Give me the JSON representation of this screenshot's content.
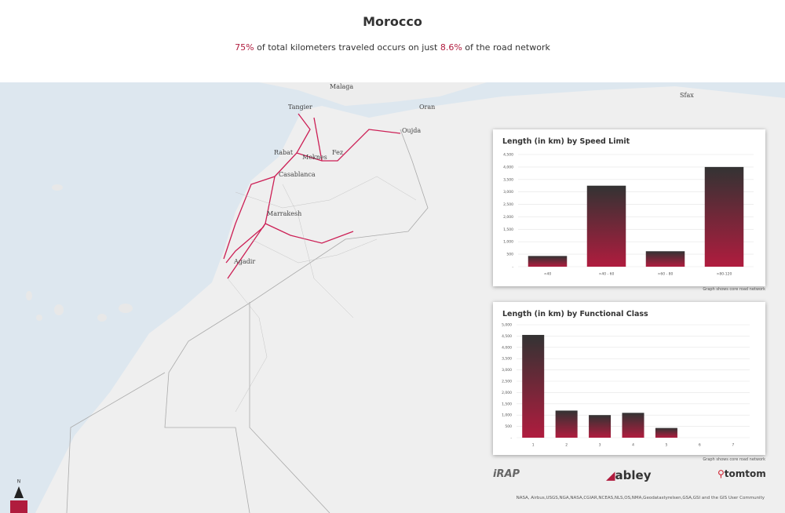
{
  "header": {
    "title": "Morocco",
    "subtitle": [
      "75%",
      " of total kilometers traveled occurs on just ",
      "8.6%",
      " of the road network"
    ]
  },
  "map": {
    "cities": [
      "Malaga",
      "Tangier",
      "Oran",
      "Oujda",
      "Sfax",
      "Rabat",
      "Meknes",
      "Fez",
      "Casablanca",
      "Marrakesh",
      "Agadir"
    ],
    "north": "N"
  },
  "charts": [
    {
      "type": "bar",
      "title": "Length (in km) by Speed Limit",
      "categories": [
        "<40",
        ">40 - 60",
        ">60 - 80",
        ">80-120"
      ],
      "values": [
        430,
        3250,
        620,
        4000
      ],
      "ylim": [
        0,
        4500
      ],
      "yticks": [
        {
          "value": 0,
          "label": "-"
        },
        500,
        {
          "value": 1000,
          "label": "1,000"
        },
        {
          "value": 1500,
          "label": "1,500"
        },
        {
          "value": 2000,
          "label": "2,000"
        },
        {
          "value": 2500,
          "label": "2,500"
        },
        {
          "value": 3000,
          "label": "3,000"
        },
        {
          "value": 3500,
          "label": "3,500"
        },
        {
          "value": 4000,
          "label": "4,000"
        },
        {
          "value": 4500,
          "label": "4,500"
        }
      ],
      "grid": true,
      "color": "#b01c3e",
      "note": "Graph shows core road network"
    },
    {
      "type": "bar",
      "title": "Length (in km) by Functional Class",
      "categories": [
        "1",
        "2",
        "3",
        "4",
        "5",
        "6",
        "7"
      ],
      "values": [
        4550,
        1200,
        1000,
        1100,
        430,
        0,
        0
      ],
      "ylim": [
        0,
        5000
      ],
      "yticks": [
        {
          "value": 0,
          "label": "-"
        },
        500,
        {
          "value": 1000,
          "label": "1,000"
        },
        {
          "value": 1500,
          "label": "1,500"
        },
        {
          "value": 2000,
          "label": "2,000"
        },
        {
          "value": 2500,
          "label": "2,500"
        },
        {
          "value": 3000,
          "label": "3,000"
        },
        {
          "value": 3500,
          "label": "3,500"
        },
        {
          "value": 4000,
          "label": "4,000"
        },
        {
          "value": 4500,
          "label": "4,500"
        },
        {
          "value": 5000,
          "label": "5,000"
        }
      ],
      "grid": true,
      "color": "#b01c3e",
      "note": "Graph shows core road network"
    }
  ],
  "logos": [
    "iRAP",
    "abley",
    "tomtom"
  ],
  "attribution": "NASA, Airbus,USGS,NGA,NASA,CGIAR,NCEAS,NLS,OS,NMA,Geodatastyrelsen,GSA,GSI and the GIS User Community"
}
